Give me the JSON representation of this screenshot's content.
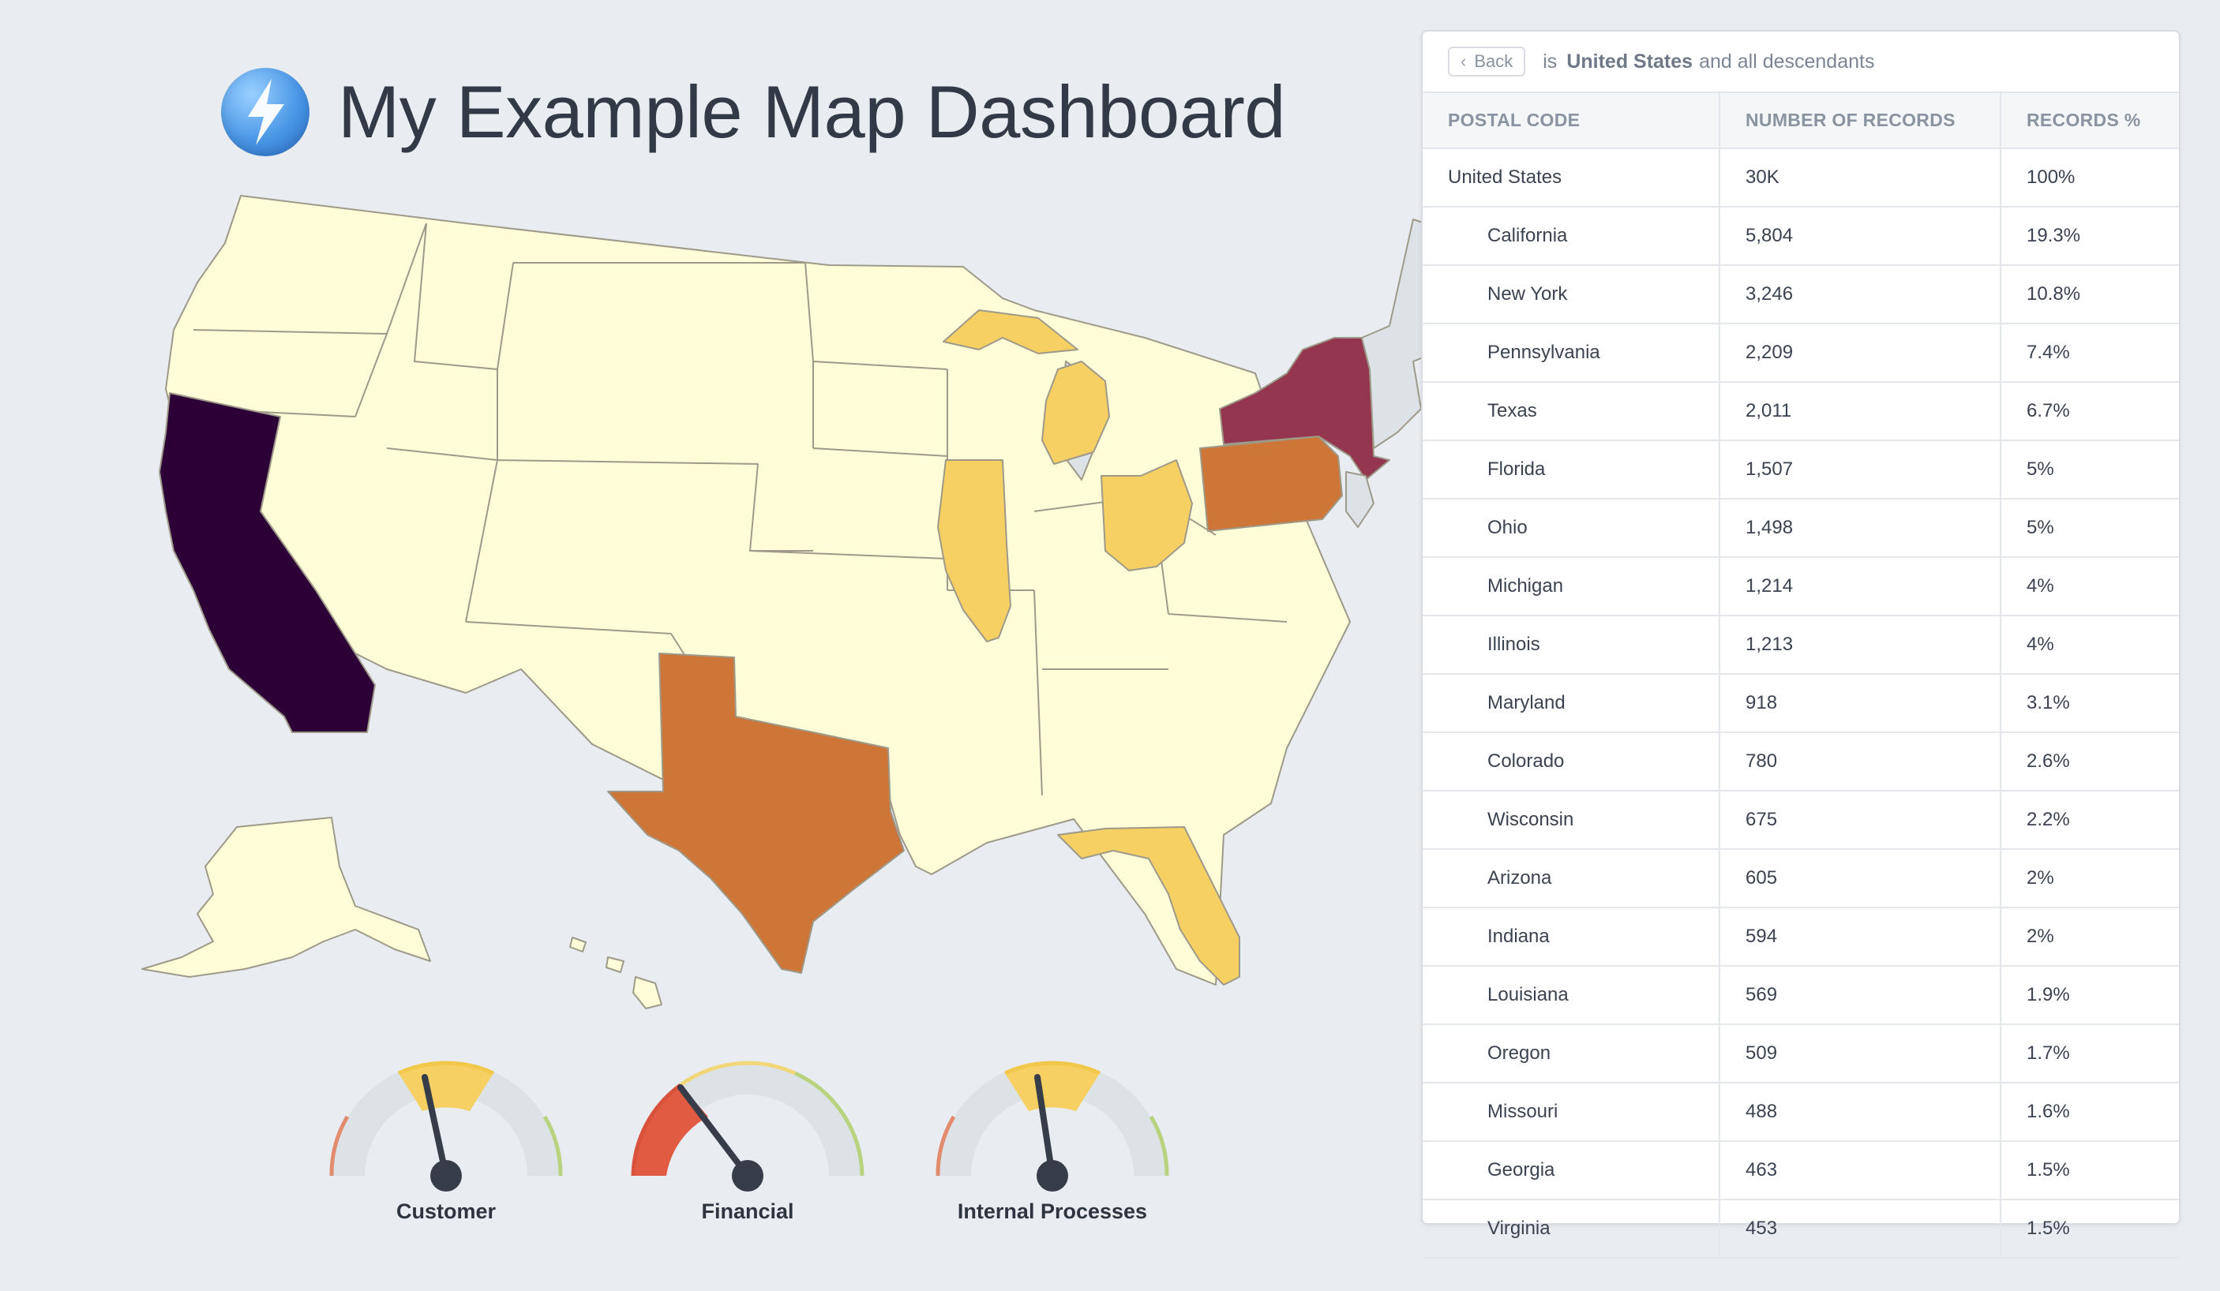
{
  "header": {
    "title": "My Example Map Dashboard",
    "logo_icon": "lightning-bolt-icon"
  },
  "map": {
    "colors": {
      "lowest": "#fffdd7",
      "low": "#f6d063",
      "mid": "#cd7637",
      "high": "#943650",
      "highest": "#2c0036",
      "no_data": "#dde2e7"
    },
    "highlighted_states": [
      {
        "name": "California",
        "level": "highest"
      },
      {
        "name": "New York",
        "level": "high"
      },
      {
        "name": "Pennsylvania",
        "level": "mid"
      },
      {
        "name": "Texas",
        "level": "mid"
      },
      {
        "name": "Florida",
        "level": "low"
      },
      {
        "name": "Ohio",
        "level": "low"
      },
      {
        "name": "Michigan",
        "level": "low"
      },
      {
        "name": "Illinois",
        "level": "low"
      }
    ]
  },
  "gauges": [
    {
      "label": "Customer",
      "value": 0.42
    },
    {
      "label": "Financial",
      "value": 0.25
    },
    {
      "label": "Internal Processes",
      "value": 0.45
    }
  ],
  "panel": {
    "back_label": "Back",
    "filter_is": "is",
    "filter_place": "United States",
    "filter_suffix": "and all descendants",
    "columns": [
      "POSTAL CODE",
      "NUMBER OF RECORDS",
      "RECORDS %"
    ],
    "rows": [
      {
        "name": "United States",
        "records": "30K",
        "percent": "100%",
        "child": false
      },
      {
        "name": "California",
        "records": "5,804",
        "percent": "19.3%",
        "child": true
      },
      {
        "name": "New York",
        "records": "3,246",
        "percent": "10.8%",
        "child": true
      },
      {
        "name": "Pennsylvania",
        "records": "2,209",
        "percent": "7.4%",
        "child": true
      },
      {
        "name": "Texas",
        "records": "2,011",
        "percent": "6.7%",
        "child": true
      },
      {
        "name": "Florida",
        "records": "1,507",
        "percent": "5%",
        "child": true
      },
      {
        "name": "Ohio",
        "records": "1,498",
        "percent": "5%",
        "child": true
      },
      {
        "name": "Michigan",
        "records": "1,214",
        "percent": "4%",
        "child": true
      },
      {
        "name": "Illinois",
        "records": "1,213",
        "percent": "4%",
        "child": true
      },
      {
        "name": "Maryland",
        "records": "918",
        "percent": "3.1%",
        "child": true
      },
      {
        "name": "Colorado",
        "records": "780",
        "percent": "2.6%",
        "child": true
      },
      {
        "name": "Wisconsin",
        "records": "675",
        "percent": "2.2%",
        "child": true
      },
      {
        "name": "Arizona",
        "records": "605",
        "percent": "2%",
        "child": true
      },
      {
        "name": "Indiana",
        "records": "594",
        "percent": "2%",
        "child": true
      },
      {
        "name": "Louisiana",
        "records": "569",
        "percent": "1.9%",
        "child": true
      },
      {
        "name": "Oregon",
        "records": "509",
        "percent": "1.7%",
        "child": true
      },
      {
        "name": "Missouri",
        "records": "488",
        "percent": "1.6%",
        "child": true
      },
      {
        "name": "Georgia",
        "records": "463",
        "percent": "1.5%",
        "child": true
      },
      {
        "name": "Virginia",
        "records": "453",
        "percent": "1.5%",
        "child": true
      }
    ]
  }
}
